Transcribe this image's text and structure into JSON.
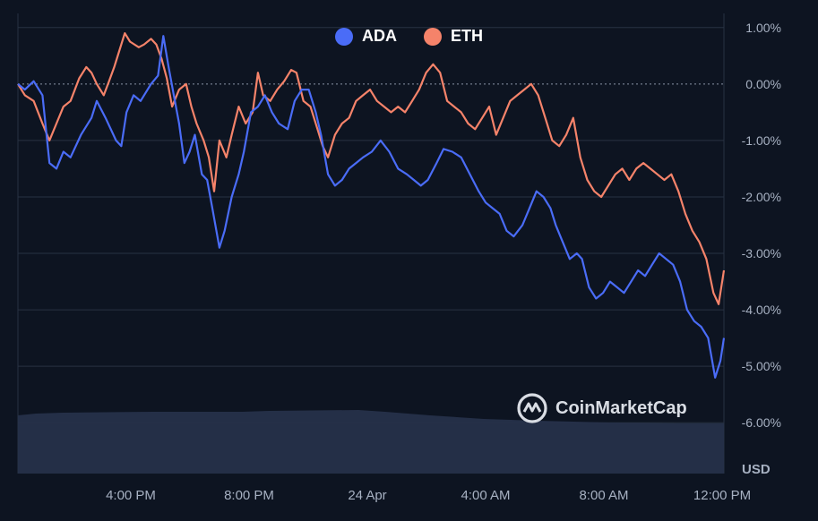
{
  "colors": {
    "background": "#0d1421",
    "ada": "#4a6cf7",
    "eth": "#f5836a",
    "grid": "#283242",
    "axis_text": "#a7b1c2",
    "volume": "#26304a"
  },
  "legend": [
    {
      "name": "ADA",
      "color": "#4a6cf7"
    },
    {
      "name": "ETH",
      "color": "#f5836a"
    }
  ],
  "watermark": {
    "text": "CoinMarketCap",
    "icon": "coinmarketcap-logo-icon"
  },
  "chart_data": {
    "type": "line",
    "title": "",
    "xlabel": "",
    "ylabel": "USD",
    "ylim": [
      -6.9,
      1.25
    ],
    "grid": true,
    "legend_position": "top-center",
    "x_ticks": [
      "4:00 PM",
      "8:00 PM",
      "24 Apr",
      "4:00 AM",
      "8:00 AM",
      "12:00 PM"
    ],
    "y_ticks": [
      "1.00%",
      "0.00%",
      "-1.00%",
      "-2.00%",
      "-3.00%",
      "-4.00%",
      "-5.00%",
      "-6.00%"
    ],
    "series": [
      {
        "name": "ADA",
        "points": [
          [
            0,
            0
          ],
          [
            0.2,
            -0.1
          ],
          [
            0.45,
            0.05
          ],
          [
            0.7,
            -0.2
          ],
          [
            0.9,
            -1.4
          ],
          [
            1.1,
            -1.5
          ],
          [
            1.3,
            -1.2
          ],
          [
            1.5,
            -1.3
          ],
          [
            1.8,
            -0.9
          ],
          [
            2.1,
            -0.6
          ],
          [
            2.25,
            -0.3
          ],
          [
            2.5,
            -0.6
          ],
          [
            2.8,
            -1.0
          ],
          [
            2.95,
            -1.1
          ],
          [
            3.1,
            -0.5
          ],
          [
            3.3,
            -0.2
          ],
          [
            3.5,
            -0.3
          ],
          [
            3.8,
            0.0
          ],
          [
            4.0,
            0.15
          ],
          [
            4.15,
            0.85
          ],
          [
            4.3,
            0.3
          ],
          [
            4.45,
            -0.2
          ],
          [
            4.6,
            -0.7
          ],
          [
            4.75,
            -1.4
          ],
          [
            4.9,
            -1.2
          ],
          [
            5.05,
            -0.9
          ],
          [
            5.25,
            -1.6
          ],
          [
            5.4,
            -1.7
          ],
          [
            5.55,
            -2.2
          ],
          [
            5.75,
            -2.9
          ],
          [
            5.9,
            -2.6
          ],
          [
            6.1,
            -2.0
          ],
          [
            6.3,
            -1.6
          ],
          [
            6.45,
            -1.2
          ],
          [
            6.65,
            -0.5
          ],
          [
            6.85,
            -0.4
          ],
          [
            7.05,
            -0.2
          ],
          [
            7.25,
            -0.5
          ],
          [
            7.45,
            -0.7
          ],
          [
            7.7,
            -0.8
          ],
          [
            7.9,
            -0.3
          ],
          [
            8.1,
            -0.1
          ],
          [
            8.3,
            -0.1
          ],
          [
            8.5,
            -0.5
          ],
          [
            8.65,
            -0.9
          ],
          [
            8.85,
            -1.6
          ],
          [
            9.05,
            -1.8
          ],
          [
            9.25,
            -1.7
          ],
          [
            9.45,
            -1.5
          ],
          [
            9.65,
            -1.4
          ],
          [
            9.85,
            -1.3
          ],
          [
            10.1,
            -1.2
          ],
          [
            10.35,
            -1.0
          ],
          [
            10.6,
            -1.2
          ],
          [
            10.85,
            -1.5
          ],
          [
            11.1,
            -1.6
          ],
          [
            11.3,
            -1.7
          ],
          [
            11.5,
            -1.8
          ],
          [
            11.7,
            -1.7
          ],
          [
            11.95,
            -1.4
          ],
          [
            12.15,
            -1.15
          ],
          [
            12.4,
            -1.2
          ],
          [
            12.65,
            -1.3
          ],
          [
            12.9,
            -1.6
          ],
          [
            13.15,
            -1.9
          ],
          [
            13.35,
            -2.1
          ],
          [
            13.55,
            -2.2
          ],
          [
            13.75,
            -2.3
          ],
          [
            13.95,
            -2.6
          ],
          [
            14.15,
            -2.7
          ],
          [
            14.4,
            -2.5
          ],
          [
            14.6,
            -2.2
          ],
          [
            14.8,
            -1.9
          ],
          [
            15.0,
            -2.0
          ],
          [
            15.2,
            -2.2
          ],
          [
            15.35,
            -2.5
          ],
          [
            15.55,
            -2.8
          ],
          [
            15.75,
            -3.1
          ],
          [
            15.95,
            -3.0
          ],
          [
            16.1,
            -3.1
          ],
          [
            16.3,
            -3.6
          ],
          [
            16.5,
            -3.8
          ],
          [
            16.7,
            -3.7
          ],
          [
            16.9,
            -3.5
          ],
          [
            17.1,
            -3.6
          ],
          [
            17.3,
            -3.7
          ],
          [
            17.5,
            -3.5
          ],
          [
            17.7,
            -3.3
          ],
          [
            17.9,
            -3.4
          ],
          [
            18.1,
            -3.2
          ],
          [
            18.3,
            -3.0
          ],
          [
            18.5,
            -3.1
          ],
          [
            18.7,
            -3.2
          ],
          [
            18.9,
            -3.5
          ],
          [
            19.1,
            -4.0
          ],
          [
            19.3,
            -4.2
          ],
          [
            19.5,
            -4.3
          ],
          [
            19.7,
            -4.5
          ],
          [
            19.9,
            -5.2
          ],
          [
            20.05,
            -4.9
          ],
          [
            20.15,
            -4.5
          ]
        ]
      },
      {
        "name": "ETH",
        "points": [
          [
            0,
            0
          ],
          [
            0.2,
            -0.2
          ],
          [
            0.45,
            -0.3
          ],
          [
            0.7,
            -0.7
          ],
          [
            0.9,
            -1.0
          ],
          [
            1.1,
            -0.7
          ],
          [
            1.3,
            -0.4
          ],
          [
            1.5,
            -0.3
          ],
          [
            1.75,
            0.1
          ],
          [
            1.95,
            0.3
          ],
          [
            2.1,
            0.2
          ],
          [
            2.25,
            0.0
          ],
          [
            2.45,
            -0.2
          ],
          [
            2.6,
            0.05
          ],
          [
            2.75,
            0.3
          ],
          [
            2.9,
            0.6
          ],
          [
            3.05,
            0.9
          ],
          [
            3.2,
            0.75
          ],
          [
            3.45,
            0.65
          ],
          [
            3.6,
            0.7
          ],
          [
            3.8,
            0.8
          ],
          [
            3.95,
            0.7
          ],
          [
            4.1,
            0.45
          ],
          [
            4.25,
            0.1
          ],
          [
            4.4,
            -0.4
          ],
          [
            4.6,
            -0.1
          ],
          [
            4.8,
            0.0
          ],
          [
            4.95,
            -0.4
          ],
          [
            5.1,
            -0.7
          ],
          [
            5.3,
            -1.0
          ],
          [
            5.45,
            -1.3
          ],
          [
            5.6,
            -1.9
          ],
          [
            5.75,
            -1.0
          ],
          [
            5.95,
            -1.3
          ],
          [
            6.1,
            -0.9
          ],
          [
            6.3,
            -0.4
          ],
          [
            6.5,
            -0.7
          ],
          [
            6.7,
            -0.5
          ],
          [
            6.85,
            0.2
          ],
          [
            7.0,
            -0.2
          ],
          [
            7.2,
            -0.3
          ],
          [
            7.4,
            -0.1
          ],
          [
            7.6,
            0.05
          ],
          [
            7.8,
            0.25
          ],
          [
            7.95,
            0.2
          ],
          [
            8.15,
            -0.3
          ],
          [
            8.35,
            -0.4
          ],
          [
            8.55,
            -0.8
          ],
          [
            8.7,
            -1.1
          ],
          [
            8.85,
            -1.3
          ],
          [
            9.05,
            -0.9
          ],
          [
            9.25,
            -0.7
          ],
          [
            9.45,
            -0.6
          ],
          [
            9.65,
            -0.3
          ],
          [
            9.85,
            -0.2
          ],
          [
            10.05,
            -0.1
          ],
          [
            10.25,
            -0.3
          ],
          [
            10.45,
            -0.4
          ],
          [
            10.65,
            -0.5
          ],
          [
            10.85,
            -0.4
          ],
          [
            11.05,
            -0.5
          ],
          [
            11.25,
            -0.3
          ],
          [
            11.45,
            -0.1
          ],
          [
            11.65,
            0.2
          ],
          [
            11.85,
            0.35
          ],
          [
            12.05,
            0.2
          ],
          [
            12.25,
            -0.3
          ],
          [
            12.45,
            -0.4
          ],
          [
            12.65,
            -0.5
          ],
          [
            12.85,
            -0.7
          ],
          [
            13.05,
            -0.8
          ],
          [
            13.25,
            -0.6
          ],
          [
            13.45,
            -0.4
          ],
          [
            13.65,
            -0.9
          ],
          [
            13.85,
            -0.6
          ],
          [
            14.05,
            -0.3
          ],
          [
            14.25,
            -0.2
          ],
          [
            14.45,
            -0.1
          ],
          [
            14.65,
            0.0
          ],
          [
            14.85,
            -0.2
          ],
          [
            15.05,
            -0.6
          ],
          [
            15.25,
            -1.0
          ],
          [
            15.45,
            -1.1
          ],
          [
            15.65,
            -0.9
          ],
          [
            15.85,
            -0.6
          ],
          [
            16.05,
            -1.3
          ],
          [
            16.25,
            -1.7
          ],
          [
            16.45,
            -1.9
          ],
          [
            16.65,
            -2.0
          ],
          [
            16.85,
            -1.8
          ],
          [
            17.05,
            -1.6
          ],
          [
            17.25,
            -1.5
          ],
          [
            17.45,
            -1.7
          ],
          [
            17.65,
            -1.5
          ],
          [
            17.85,
            -1.4
          ],
          [
            18.05,
            -1.5
          ],
          [
            18.25,
            -1.6
          ],
          [
            18.45,
            -1.7
          ],
          [
            18.65,
            -1.6
          ],
          [
            18.85,
            -1.9
          ],
          [
            19.05,
            -2.3
          ],
          [
            19.25,
            -2.6
          ],
          [
            19.45,
            -2.8
          ],
          [
            19.65,
            -3.1
          ],
          [
            19.85,
            -3.7
          ],
          [
            20.0,
            -3.9
          ],
          [
            20.15,
            -3.3
          ]
        ]
      }
    ]
  }
}
